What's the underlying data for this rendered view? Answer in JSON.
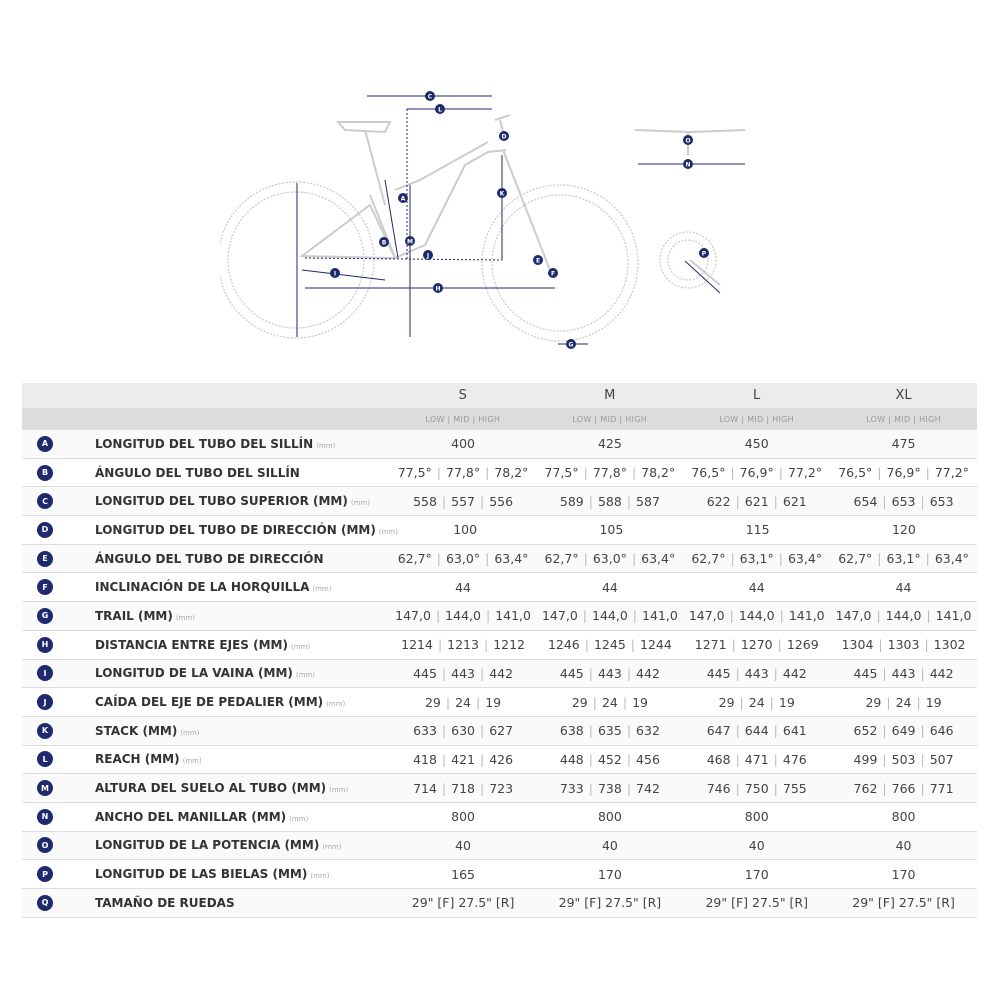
{
  "colors": {
    "accent": "#1f2a6e",
    "text": "#333333",
    "header_bg": "#ececec",
    "subheader_bg": "#dcdcdc"
  },
  "diagram": {
    "labels": [
      "A",
      "B",
      "C",
      "D",
      "E",
      "F",
      "G",
      "H",
      "I",
      "J",
      "K",
      "L",
      "M",
      "N",
      "O",
      "P"
    ]
  },
  "table": {
    "sizes": [
      "S",
      "M",
      "L",
      "XL"
    ],
    "subheader": "LOW | MID | HIGH",
    "rows": [
      {
        "letter": "A",
        "name": "LONGITUD DEL TUBO DEL SILLÍN",
        "unit": "(mm)",
        "values": [
          [
            "400"
          ],
          [
            "425"
          ],
          [
            "450"
          ],
          [
            "475"
          ]
        ]
      },
      {
        "letter": "B",
        "name": "ÁNGULO DEL TUBO DEL SILLÍN",
        "unit": "",
        "values": [
          [
            "77,5°",
            "77,8°",
            "78,2°"
          ],
          [
            "77,5°",
            "77,8°",
            "78,2°"
          ],
          [
            "76,5°",
            "76,9°",
            "77,2°"
          ],
          [
            "76,5°",
            "76,9°",
            "77,2°"
          ]
        ]
      },
      {
        "letter": "C",
        "name": "LONGITUD DEL TUBO SUPERIOR (MM)",
        "unit": "(mm)",
        "values": [
          [
            "558",
            "557",
            "556"
          ],
          [
            "589",
            "588",
            "587"
          ],
          [
            "622",
            "621",
            "621"
          ],
          [
            "654",
            "653",
            "653"
          ]
        ]
      },
      {
        "letter": "D",
        "name": "LONGITUD DEL TUBO DE DIRECCIÓN (MM)",
        "unit": "(mm)",
        "values": [
          [
            "100"
          ],
          [
            "105"
          ],
          [
            "115"
          ],
          [
            "120"
          ]
        ]
      },
      {
        "letter": "E",
        "name": "ÁNGULO DEL TUBO DE DIRECCIÓN",
        "unit": "",
        "values": [
          [
            "62,7°",
            "63,0°",
            "63,4°"
          ],
          [
            "62,7°",
            "63,0°",
            "63,4°"
          ],
          [
            "62,7°",
            "63,1°",
            "63,4°"
          ],
          [
            "62,7°",
            "63,1°",
            "63,4°"
          ]
        ]
      },
      {
        "letter": "F",
        "name": "INCLINACIÓN DE LA HORQUILLA",
        "unit": "(mm)",
        "values": [
          [
            "44"
          ],
          [
            "44"
          ],
          [
            "44"
          ],
          [
            "44"
          ]
        ]
      },
      {
        "letter": "G",
        "name": "TRAIL (MM)",
        "unit": "(mm)",
        "values": [
          [
            "147,0",
            "144,0",
            "141,0"
          ],
          [
            "147,0",
            "144,0",
            "141,0"
          ],
          [
            "147,0",
            "144,0",
            "141,0"
          ],
          [
            "147,0",
            "144,0",
            "141,0"
          ]
        ]
      },
      {
        "letter": "H",
        "name": "DISTANCIA ENTRE EJES (MM)",
        "unit": "(mm)",
        "values": [
          [
            "1214",
            "1213",
            "1212"
          ],
          [
            "1246",
            "1245",
            "1244"
          ],
          [
            "1271",
            "1270",
            "1269"
          ],
          [
            "1304",
            "1303",
            "1302"
          ]
        ]
      },
      {
        "letter": "I",
        "name": "LONGITUD DE LA VAINA (MM)",
        "unit": "(mm)",
        "values": [
          [
            "445",
            "443",
            "442"
          ],
          [
            "445",
            "443",
            "442"
          ],
          [
            "445",
            "443",
            "442"
          ],
          [
            "445",
            "443",
            "442"
          ]
        ]
      },
      {
        "letter": "J",
        "name": "CAÍDA DEL EJE DE PEDALIER (MM)",
        "unit": "(mm)",
        "values": [
          [
            "29",
            "24",
            "19"
          ],
          [
            "29",
            "24",
            "19"
          ],
          [
            "29",
            "24",
            "19"
          ],
          [
            "29",
            "24",
            "19"
          ]
        ]
      },
      {
        "letter": "K",
        "name": "STACK (MM)",
        "unit": "(mm)",
        "values": [
          [
            "633",
            "630",
            "627"
          ],
          [
            "638",
            "635",
            "632"
          ],
          [
            "647",
            "644",
            "641"
          ],
          [
            "652",
            "649",
            "646"
          ]
        ]
      },
      {
        "letter": "L",
        "name": "REACH (MM)",
        "unit": "(mm)",
        "values": [
          [
            "418",
            "421",
            "426"
          ],
          [
            "448",
            "452",
            "456"
          ],
          [
            "468",
            "471",
            "476"
          ],
          [
            "499",
            "503",
            "507"
          ]
        ]
      },
      {
        "letter": "M",
        "name": "ALTURA DEL SUELO AL TUBO (MM)",
        "unit": "(mm)",
        "values": [
          [
            "714",
            "718",
            "723"
          ],
          [
            "733",
            "738",
            "742"
          ],
          [
            "746",
            "750",
            "755"
          ],
          [
            "762",
            "766",
            "771"
          ]
        ]
      },
      {
        "letter": "N",
        "name": "ANCHO DEL MANILLAR (MM)",
        "unit": "(mm)",
        "values": [
          [
            "800"
          ],
          [
            "800"
          ],
          [
            "800"
          ],
          [
            "800"
          ]
        ]
      },
      {
        "letter": "O",
        "name": "LONGITUD DE LA POTENCIA (MM)",
        "unit": "(mm)",
        "values": [
          [
            "40"
          ],
          [
            "40"
          ],
          [
            "40"
          ],
          [
            "40"
          ]
        ]
      },
      {
        "letter": "P",
        "name": "LONGITUD DE LAS BIELAS (MM)",
        "unit": "(mm)",
        "values": [
          [
            "165"
          ],
          [
            "170"
          ],
          [
            "170"
          ],
          [
            "170"
          ]
        ]
      },
      {
        "letter": "Q",
        "name": "TAMAÑO DE RUEDAS",
        "unit": "",
        "values": [
          [
            "29\" [F] 27.5\" [R]"
          ],
          [
            "29\" [F] 27.5\" [R]"
          ],
          [
            "29\" [F] 27.5\" [R]"
          ],
          [
            "29\" [F] 27.5\" [R]"
          ]
        ]
      }
    ]
  }
}
